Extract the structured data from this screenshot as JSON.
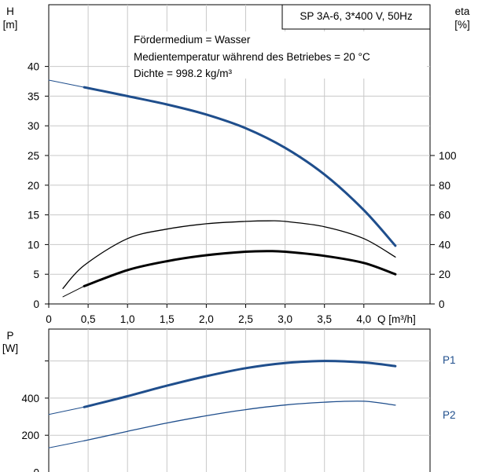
{
  "chart_data": [
    {
      "type": "line",
      "title": "SP 3A-6, 3*400 V, 50Hz",
      "annotations": [
        "Fördermedium = Wasser",
        "Medientemperatur während des Betriebes = 20 °C",
        "Dichte = 998.2 kg/m³"
      ],
      "xlabel": "Q [m³/h]",
      "ylabel_left": [
        "H",
        "[m]"
      ],
      "ylabel_right": [
        "eta",
        "[%]"
      ],
      "xlim": [
        0,
        4.85
      ],
      "ylim_left": [
        0,
        45
      ],
      "ylim_right": [
        0,
        100
      ],
      "x_ticks": [
        "0",
        "0,5",
        "1,0",
        "1,5",
        "2,0",
        "2,5",
        "3,0",
        "3,5",
        "4,0"
      ],
      "y_ticks_left": [
        "0",
        "5",
        "10",
        "15",
        "20",
        "25",
        "30",
        "35",
        "40"
      ],
      "y_ticks_right": [
        "0",
        "20",
        "40",
        "60",
        "80",
        "100"
      ],
      "grid": true,
      "series": [
        {
          "axis": "left",
          "color": "#1f4e8c",
          "width": 3,
          "x": [
            0.45,
            1.0,
            1.5,
            2.0,
            2.5,
            3.0,
            3.5,
            4.0,
            4.4
          ],
          "y": [
            36.5,
            35.0,
            33.6,
            31.9,
            29.6,
            26.3,
            21.8,
            15.8,
            9.8
          ]
        },
        {
          "axis": "left",
          "color": "#1f4e8c",
          "width": 1,
          "x": [
            0,
            0.45
          ],
          "y": [
            37.7,
            36.5
          ]
        },
        {
          "axis": "left",
          "color": "#000000",
          "width": 1.3,
          "x": [
            0.18,
            0.45,
            1.0,
            1.5,
            2.0,
            2.5,
            2.8,
            3.0,
            3.5,
            4.0,
            4.4
          ],
          "y": [
            2.6,
            6.5,
            11.0,
            12.6,
            13.5,
            13.9,
            14.0,
            13.9,
            13.0,
            11.0,
            7.9
          ]
        },
        {
          "axis": "left",
          "color": "#000000",
          "width": 3,
          "x": [
            0.45,
            1.0,
            1.5,
            2.0,
            2.5,
            2.8,
            3.0,
            3.5,
            4.0,
            4.4
          ],
          "y": [
            3.0,
            5.7,
            7.2,
            8.2,
            8.8,
            8.9,
            8.8,
            8.1,
            6.9,
            5.0
          ]
        },
        {
          "axis": "left",
          "color": "#000000",
          "width": 1,
          "x": [
            0.18,
            0.45
          ],
          "y": [
            1.2,
            3.0
          ]
        }
      ]
    },
    {
      "type": "line",
      "ylabel": [
        "P",
        "[W]"
      ],
      "xlim": [
        0,
        4.85
      ],
      "ylim": [
        0,
        640
      ],
      "y_ticks": [
        "0",
        "200",
        "400"
      ],
      "grid": true,
      "series": [
        {
          "name": "P1",
          "color": "#1f4e8c",
          "width": 3,
          "x": [
            0.45,
            1.0,
            1.5,
            2.0,
            2.5,
            3.0,
            3.5,
            4.0,
            4.4
          ],
          "y": [
            352,
            410,
            467,
            518,
            561,
            589,
            600,
            592,
            572
          ]
        },
        {
          "color": "#1f4e8c",
          "width": 1,
          "x": [
            0,
            0.45
          ],
          "y": [
            312,
            352
          ]
        },
        {
          "name": "P2",
          "color": "#1f4e8c",
          "width": 1.3,
          "x": [
            0.45,
            1.0,
            1.5,
            2.0,
            2.5,
            3.0,
            3.5,
            4.0,
            4.4
          ],
          "y": [
            170,
            221,
            266,
            305,
            338,
            363,
            378,
            383,
            362
          ]
        },
        {
          "color": "#1f4e8c",
          "width": 1,
          "x": [
            0,
            0.45
          ],
          "y": [
            132,
            170
          ]
        }
      ]
    }
  ]
}
